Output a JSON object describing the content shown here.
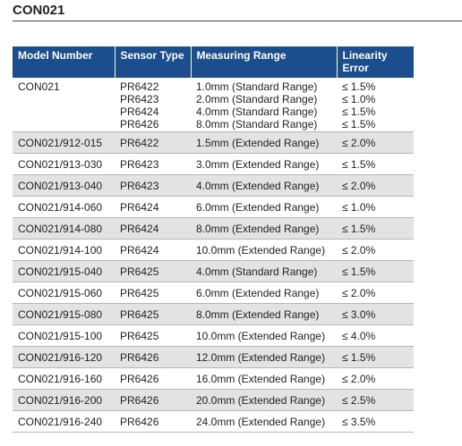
{
  "title": "CON021",
  "table": {
    "headers": [
      "Model Number",
      "Sensor Type",
      "Measuring Range",
      "Linearity Error"
    ],
    "rows": [
      [
        "CON021",
        [
          "PR6422",
          "PR6423",
          "PR6424",
          "PR6426"
        ],
        [
          "1.0mm (Standard Range)",
          "2.0mm (Standard Range)",
          "4.0mm (Standard Range)",
          "8.0mm (Standard Range)"
        ],
        [
          "≤ 1.5%",
          "≤ 1.0%",
          "≤ 1.5%",
          "≤ 1.5%"
        ]
      ],
      [
        "CON021/912-015",
        "PR6422",
        "1.5mm (Extended Range)",
        "≤ 2.0%"
      ],
      [
        "CON021/913-030",
        "PR6423",
        "3.0mm (Extended Range)",
        "≤ 1.5%"
      ],
      [
        "CON021/913-040",
        "PR6423",
        "4.0mm (Extended Range)",
        "≤ 2.0%"
      ],
      [
        "CON021/914-060",
        "PR6424",
        "6.0mm (Extended Range)",
        "≤ 1.0%"
      ],
      [
        "CON021/914-080",
        "PR6424",
        "8.0mm (Extended Range)",
        "≤ 1.5%"
      ],
      [
        "CON021/914-100",
        "PR6424",
        "10.0mm (Extended Range)",
        "≤ 2.0%"
      ],
      [
        "CON021/915-040",
        "PR6425",
        "4.0mm (Standard Range)",
        "≤ 1.5%"
      ],
      [
        "CON021/915-060",
        "PR6425",
        "6.0mm (Extended Range)",
        "≤ 2.0%"
      ],
      [
        "CON021/915-080",
        "PR6425",
        "8.0mm (Extended Range)",
        "≤ 3.0%"
      ],
      [
        "CON021/915-100",
        "PR6425",
        "10.0mm (Extended Range)",
        "≤ 4.0%"
      ],
      [
        "CON021/916-120",
        "PR6426",
        "12.0mm (Extended Range)",
        "≤ 1.5%"
      ],
      [
        "CON021/916-160",
        "PR6426",
        "16.0mm (Extended Range)",
        "≤ 2.0%"
      ],
      [
        "CON021/916-200",
        "PR6426",
        "20.0mm (Extended Range)",
        "≤ 2.5%"
      ],
      [
        "CON021/916-240",
        "PR6426",
        "24.0mm (Extended Range)",
        "≤ 3.5%"
      ]
    ]
  }
}
